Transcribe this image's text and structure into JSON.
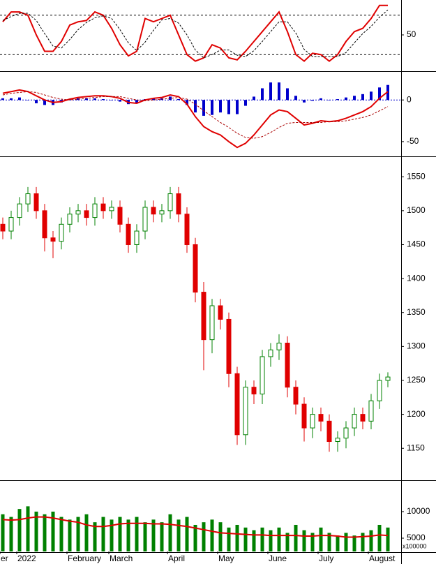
{
  "chart_data": [
    {
      "type": "line",
      "ylim": [
        0,
        100
      ],
      "yticks": [
        50
      ],
      "hlines": [
        80,
        20
      ],
      "series": [
        {
          "color": "#e00000",
          "dash": false,
          "values": [
            70,
            85,
            85,
            80,
            50,
            25,
            25,
            40,
            65,
            70,
            72,
            85,
            80,
            60,
            35,
            18,
            25,
            75,
            70,
            75,
            80,
            50,
            20,
            10,
            15,
            35,
            30,
            15,
            12,
            25,
            40,
            55,
            70,
            85,
            55,
            20,
            10,
            22,
            20,
            10,
            20,
            40,
            55,
            60,
            75,
            95,
            95
          ]
        },
        {
          "color": "#000000",
          "dash": true,
          "values": [
            72,
            78,
            83,
            83,
            72,
            52,
            33,
            30,
            43,
            58,
            69,
            76,
            79,
            75,
            58,
            38,
            26,
            39,
            57,
            73,
            75,
            68,
            50,
            27,
            15,
            20,
            27,
            27,
            19,
            17,
            26,
            40,
            55,
            70,
            70,
            53,
            28,
            17,
            17,
            17,
            17,
            23,
            38,
            52,
            63,
            77,
            88
          ]
        }
      ]
    },
    {
      "type": "macd",
      "ylim": [
        -66,
        32
      ],
      "yticks": [
        -50,
        0
      ],
      "zero_color": "#0000cc",
      "histogram": {
        "color": "#0000cc",
        "values": [
          2,
          2,
          3,
          0,
          -4,
          -6,
          -6,
          -3,
          1,
          2,
          2,
          2,
          1,
          0,
          -2,
          -5,
          -4,
          1,
          2,
          2,
          4,
          1,
          -6,
          -15,
          -19,
          -18,
          -15,
          -17,
          -17,
          -7,
          4,
          14,
          21,
          21,
          14,
          5,
          -3,
          -1,
          2,
          0,
          1,
          3,
          5,
          7,
          10,
          15,
          18
        ]
      },
      "series": [
        {
          "color": "#e00000",
          "dash": false,
          "values": [
            8,
            10,
            12,
            10,
            5,
            0,
            -3,
            -2,
            1,
            3,
            4,
            5,
            5,
            4,
            2,
            -3,
            -4,
            0,
            2,
            3,
            6,
            4,
            -5,
            -20,
            -32,
            -38,
            -42,
            -50,
            -57,
            -52,
            -42,
            -30,
            -18,
            -12,
            -14,
            -22,
            -30,
            -28,
            -25,
            -26,
            -25,
            -22,
            -18,
            -14,
            -8,
            2,
            10
          ]
        },
        {
          "color": "#aa0000",
          "dash": true,
          "values": [
            6,
            8,
            9,
            10,
            9,
            6,
            3,
            1,
            0,
            1,
            2,
            3,
            4,
            4,
            4,
            2,
            0,
            -1,
            0,
            1,
            2,
            3,
            1,
            -5,
            -13,
            -20,
            -27,
            -33,
            -40,
            -45,
            -46,
            -44,
            -39,
            -33,
            -28,
            -27,
            -27,
            -27,
            -27,
            -26,
            -26,
            -25,
            -23,
            -21,
            -18,
            -13,
            -8
          ]
        }
      ]
    },
    {
      "type": "candlestick",
      "ylim": [
        1105,
        1578
      ],
      "yticks": [
        1150,
        1200,
        1250,
        1300,
        1350,
        1400,
        1450,
        1500,
        1550
      ],
      "up_color": "#008000",
      "down_color": "#e00000",
      "open": [
        1480,
        1470,
        1490,
        1510,
        1525,
        1500,
        1460,
        1455,
        1480,
        1495,
        1500,
        1490,
        1510,
        1500,
        1505,
        1480,
        1450,
        1470,
        1505,
        1495,
        1500,
        1525,
        1495,
        1450,
        1380,
        1310,
        1360,
        1340,
        1260,
        1170,
        1240,
        1230,
        1285,
        1295,
        1305,
        1240,
        1215,
        1180,
        1200,
        1190,
        1160,
        1165,
        1180,
        1200,
        1190,
        1220,
        1250
      ],
      "high": [
        1490,
        1500,
        1520,
        1535,
        1535,
        1510,
        1470,
        1490,
        1505,
        1510,
        1510,
        1520,
        1520,
        1515,
        1515,
        1490,
        1480,
        1515,
        1515,
        1510,
        1535,
        1535,
        1505,
        1460,
        1395,
        1370,
        1370,
        1350,
        1270,
        1250,
        1250,
        1295,
        1305,
        1318,
        1315,
        1250,
        1225,
        1210,
        1210,
        1200,
        1175,
        1190,
        1210,
        1210,
        1230,
        1260,
        1262
      ],
      "low": [
        1458,
        1458,
        1478,
        1498,
        1488,
        1440,
        1430,
        1443,
        1468,
        1483,
        1478,
        1478,
        1488,
        1488,
        1468,
        1438,
        1438,
        1458,
        1483,
        1483,
        1488,
        1483,
        1438,
        1365,
        1265,
        1290,
        1325,
        1240,
        1155,
        1155,
        1215,
        1215,
        1270,
        1280,
        1225,
        1200,
        1160,
        1165,
        1175,
        1145,
        1145,
        1150,
        1168,
        1178,
        1178,
        1208,
        1240
      ],
      "close": [
        1470,
        1490,
        1510,
        1525,
        1500,
        1460,
        1455,
        1480,
        1495,
        1500,
        1490,
        1510,
        1500,
        1505,
        1480,
        1450,
        1470,
        1505,
        1495,
        1500,
        1525,
        1495,
        1450,
        1380,
        1310,
        1360,
        1340,
        1260,
        1170,
        1240,
        1230,
        1285,
        1295,
        1305,
        1240,
        1215,
        1180,
        1200,
        1190,
        1160,
        1165,
        1180,
        1200,
        1190,
        1220,
        1250,
        1255
      ]
    },
    {
      "type": "volume",
      "ylim": [
        2500,
        15650
      ],
      "yticks": [
        5000,
        10000
      ],
      "unit_label": "x100000",
      "categories": [
        "er",
        null,
        "2022",
        null,
        null,
        null,
        null,
        null,
        "February",
        null,
        null,
        null,
        null,
        "March",
        null,
        null,
        null,
        null,
        null,
        null,
        "April",
        null,
        null,
        null,
        null,
        null,
        "May",
        null,
        null,
        null,
        null,
        null,
        "June",
        null,
        null,
        null,
        null,
        null,
        "July",
        null,
        null,
        null,
        null,
        null,
        "August",
        null,
        null
      ],
      "series": [
        {
          "color": "#008000",
          "kind": "bar",
          "values": [
            9500,
            9000,
            10500,
            11000,
            10000,
            9500,
            10000,
            9000,
            8500,
            9000,
            9500,
            8000,
            9000,
            8500,
            9000,
            8500,
            9000,
            8000,
            8500,
            8000,
            9500,
            8500,
            9000,
            7500,
            8000,
            8500,
            8000,
            7000,
            7500,
            7000,
            6500,
            7000,
            6500,
            7000,
            6000,
            7500,
            6500,
            6000,
            7000,
            6000,
            5500,
            6000,
            5500,
            6000,
            6500,
            7500,
            7000
          ]
        },
        {
          "color": "#e00000",
          "kind": "line",
          "values": [
            8500,
            8400,
            8500,
            8800,
            9000,
            9000,
            8800,
            8500,
            8200,
            8000,
            7500,
            7200,
            7200,
            7400,
            7700,
            7800,
            7800,
            7800,
            7700,
            7700,
            7600,
            7400,
            7200,
            6900,
            6600,
            6300,
            6000,
            5900,
            5800,
            5700,
            5600,
            5600,
            5500,
            5500,
            5500,
            5500,
            5400,
            5400,
            5500,
            5500,
            5400,
            5200,
            5200,
            5300,
            5400,
            5600,
            5500
          ]
        }
      ]
    }
  ]
}
